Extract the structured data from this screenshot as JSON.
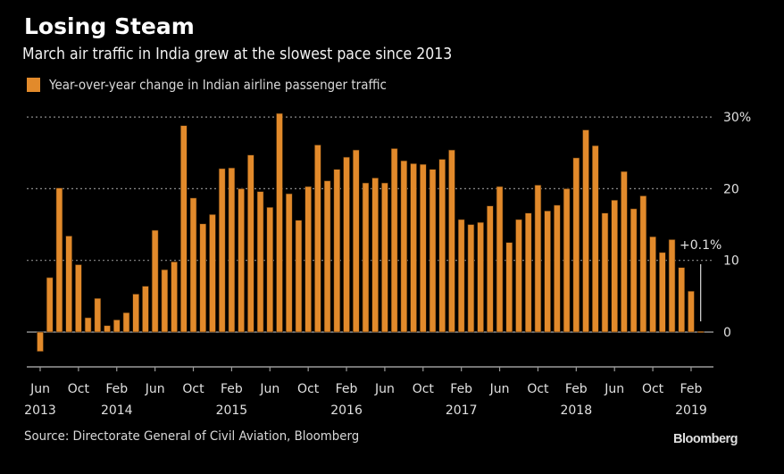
{
  "header": {
    "title": "Losing Steam",
    "subtitle": "March air traffic in India grew at the slowest pace since 2013"
  },
  "legend": {
    "label": "Year-over-year change in Indian airline passenger traffic",
    "color": "#E28A2B"
  },
  "footer": {
    "source": "Source: Directorate General of Civil Aviation, Bloomberg",
    "brand": "Bloomberg"
  },
  "chart_data": {
    "type": "bar",
    "title": "Losing Steam",
    "subtitle": "March air traffic in India grew at the slowest pace since 2013",
    "xlabel": "",
    "ylabel": "",
    "ylim": [
      -5,
      30
    ],
    "y_ticks": [
      0,
      10,
      20,
      30
    ],
    "y_tick_labels": [
      "0",
      "10",
      "20",
      "30%"
    ],
    "grid": true,
    "legend_position": "top-left",
    "bar_color": "#E28A2B",
    "x_start": "2013-06",
    "x_end": "2019-03",
    "x_ticks": [
      {
        "month": "Jun",
        "year": "2013",
        "index": 0
      },
      {
        "month": "Oct",
        "year": "",
        "index": 4
      },
      {
        "month": "Feb",
        "year": "2014",
        "index": 8
      },
      {
        "month": "Jun",
        "year": "",
        "index": 12
      },
      {
        "month": "Oct",
        "year": "",
        "index": 16
      },
      {
        "month": "Feb",
        "year": "2015",
        "index": 20
      },
      {
        "month": "Jun",
        "year": "",
        "index": 24
      },
      {
        "month": "Oct",
        "year": "",
        "index": 28
      },
      {
        "month": "Feb",
        "year": "2016",
        "index": 32
      },
      {
        "month": "Jun",
        "year": "",
        "index": 36
      },
      {
        "month": "Oct",
        "year": "",
        "index": 40
      },
      {
        "month": "Feb",
        "year": "2017",
        "index": 44
      },
      {
        "month": "Jun",
        "year": "",
        "index": 48
      },
      {
        "month": "Oct",
        "year": "",
        "index": 52
      },
      {
        "month": "Feb",
        "year": "2018",
        "index": 56
      },
      {
        "month": "Jun",
        "year": "",
        "index": 60
      },
      {
        "month": "Oct",
        "year": "",
        "index": 64
      },
      {
        "month": "Feb",
        "year": "2019",
        "index": 68
      }
    ],
    "categories": [
      "2013-06",
      "2013-07",
      "2013-08",
      "2013-09",
      "2013-10",
      "2013-11",
      "2013-12",
      "2014-01",
      "2014-02",
      "2014-03",
      "2014-04",
      "2014-05",
      "2014-06",
      "2014-07",
      "2014-08",
      "2014-09",
      "2014-10",
      "2014-11",
      "2014-12",
      "2015-01",
      "2015-02",
      "2015-03",
      "2015-04",
      "2015-05",
      "2015-06",
      "2015-07",
      "2015-08",
      "2015-09",
      "2015-10",
      "2015-11",
      "2015-12",
      "2016-01",
      "2016-02",
      "2016-03",
      "2016-04",
      "2016-05",
      "2016-06",
      "2016-07",
      "2016-08",
      "2016-09",
      "2016-10",
      "2016-11",
      "2016-12",
      "2017-01",
      "2017-02",
      "2017-03",
      "2017-04",
      "2017-05",
      "2017-06",
      "2017-07",
      "2017-08",
      "2017-09",
      "2017-10",
      "2017-11",
      "2017-12",
      "2018-01",
      "2018-02",
      "2018-03",
      "2018-04",
      "2018-05",
      "2018-06",
      "2018-07",
      "2018-08",
      "2018-09",
      "2018-10",
      "2018-11",
      "2018-12",
      "2019-01",
      "2019-02",
      "2019-03"
    ],
    "series": [
      {
        "name": "Year-over-year change in Indian airline passenger traffic",
        "values": [
          -2.7,
          7.6,
          20.1,
          13.4,
          9.4,
          2.0,
          4.7,
          0.9,
          1.7,
          2.7,
          5.3,
          6.4,
          14.2,
          8.7,
          9.8,
          28.8,
          18.7,
          15.1,
          16.4,
          22.8,
          22.9,
          20.0,
          24.7,
          19.6,
          17.4,
          30.5,
          19.3,
          15.6,
          20.3,
          26.1,
          21.1,
          22.7,
          24.4,
          25.4,
          20.8,
          21.5,
          20.8,
          25.6,
          23.9,
          23.5,
          23.4,
          22.7,
          24.1,
          25.4,
          15.7,
          15.0,
          15.3,
          17.6,
          20.3,
          12.5,
          15.7,
          16.6,
          20.5,
          16.9,
          17.7,
          20.0,
          24.3,
          28.2,
          26.0,
          16.6,
          18.4,
          22.4,
          17.2,
          19.0,
          13.3,
          11.1,
          12.9,
          9.0,
          5.7,
          0.1
        ]
      }
    ],
    "annotations": [
      {
        "text": "+0.1%",
        "target": "2019-03"
      }
    ]
  }
}
